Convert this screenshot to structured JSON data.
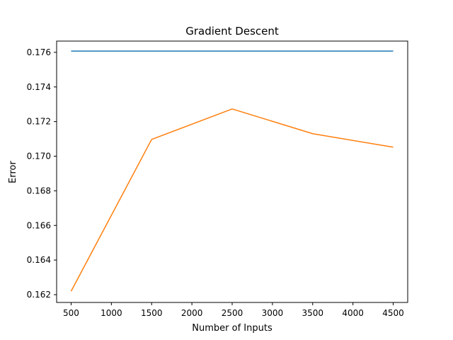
{
  "chart_data": {
    "type": "line",
    "title": "Gradient Descent",
    "xlabel": "Number of Inputs",
    "ylabel": "Error",
    "x": [
      500,
      1500,
      2500,
      3500,
      4500
    ],
    "xlim": [
      320,
      4680
    ],
    "ylim": [
      0.16155,
      0.17665
    ],
    "xticks": [
      500,
      1000,
      1500,
      2000,
      2500,
      3000,
      3500,
      4000,
      4500
    ],
    "yticks": [
      0.162,
      0.164,
      0.166,
      0.168,
      0.17,
      0.172,
      0.174,
      0.176
    ],
    "xtick_labels": [
      "500",
      "1000",
      "1500",
      "2000",
      "2500",
      "3000",
      "3500",
      "4000",
      "4500"
    ],
    "ytick_labels": [
      "0.162",
      "0.164",
      "0.166",
      "0.168",
      "0.170",
      "0.172",
      "0.174",
      "0.176"
    ],
    "grid": false,
    "series": [
      {
        "color": "#1f77b4",
        "values": [
          0.17607,
          0.17607,
          0.17607,
          0.17607,
          0.17607
        ]
      },
      {
        "color": "#ff7f0e",
        "values": [
          0.1622,
          0.17097,
          0.17273,
          0.1713,
          0.17052
        ]
      }
    ]
  }
}
